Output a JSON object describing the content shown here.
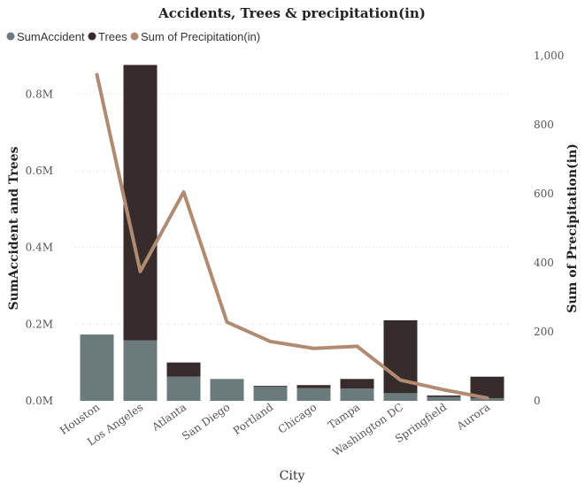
{
  "chart_data": {
    "type": "bar",
    "title": "Accidents, Trees & precipitation(in)",
    "xlabel": "City",
    "ylabel": "SumAccident and Trees",
    "y2label": "Sum of Precipitation(in)",
    "categories": [
      "Houston",
      "Los Angeles",
      "Atlanta",
      "San Diego",
      "Portland",
      "Chicago",
      "Tampa",
      "Washington DC",
      "Springfield",
      "Aurora"
    ],
    "ylim": [
      0,
      0.9
    ],
    "yticks": [
      "0.0M",
      "0.2M",
      "0.4M",
      "0.6M",
      "0.8M"
    ],
    "y2lim": [
      0,
      1000
    ],
    "y2ticks": [
      "0",
      "200",
      "400",
      "600",
      "800",
      "1,000"
    ],
    "legend_position": "top-left",
    "grid": true,
    "series": [
      {
        "name": "SumAccident",
        "kind": "bar",
        "color": "#6b7b7b",
        "unit": "M",
        "values": [
          0.173,
          0.158,
          0.063,
          0.057,
          0.037,
          0.033,
          0.032,
          0.02,
          0.01,
          0.007
        ]
      },
      {
        "name": "Trees",
        "kind": "bar",
        "color": "#352c2b",
        "unit": "M",
        "values": [
          0.0,
          0.718,
          0.037,
          0.0,
          0.002,
          0.008,
          0.025,
          0.19,
          0.004,
          0.056
        ]
      },
      {
        "name": "Sum of Precipitation(in)",
        "kind": "line",
        "axis": "right",
        "color": "#b08b72",
        "values": [
          945,
          375,
          605,
          228,
          172,
          152,
          158,
          60,
          32,
          8
        ]
      }
    ]
  }
}
